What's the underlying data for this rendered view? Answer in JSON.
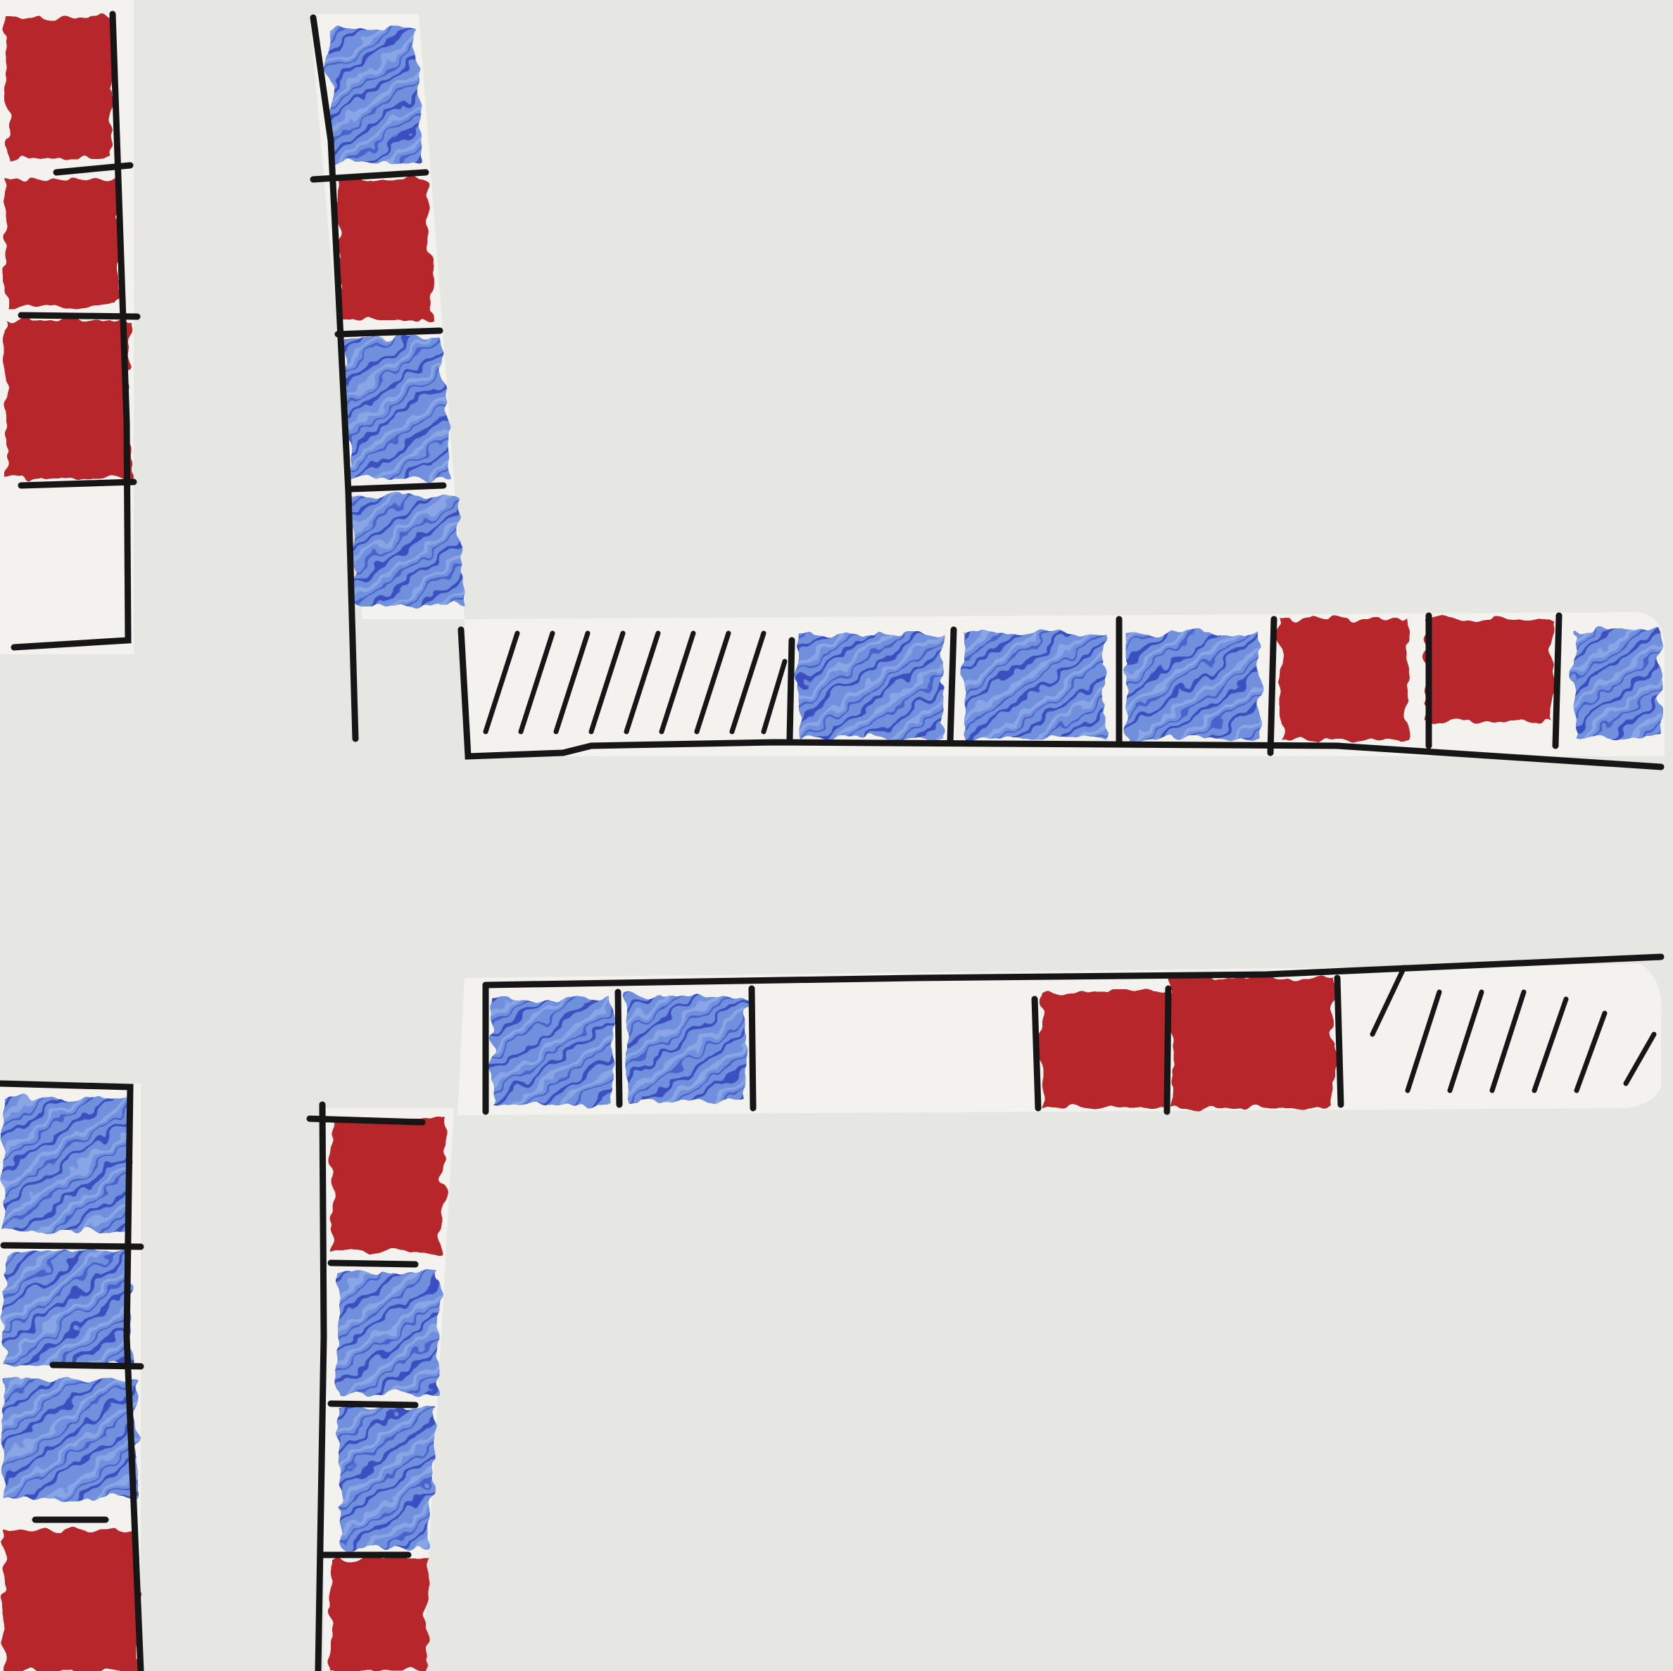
{
  "colors": {
    "paper": "#e6e6e3",
    "strip": "#f3f2ef",
    "ink": "#161616",
    "red": "#b6262c",
    "blue": "#5b7fd2",
    "blue_dark": "#3b4fc0"
  },
  "strips": [
    {
      "id": "top-left-outer",
      "cells": [
        "red",
        "red",
        "red",
        "empty"
      ]
    },
    {
      "id": "top-left-inner",
      "cells": [
        "blue",
        "red",
        "blue",
        "blue"
      ]
    },
    {
      "id": "top-horizontal",
      "cells": [
        "hatched",
        "blue",
        "blue",
        "blue",
        "red",
        "red",
        "blue"
      ]
    },
    {
      "id": "bottom-horizontal",
      "cells": [
        "blue",
        "blue",
        "empty",
        "red",
        "red",
        "hatched"
      ]
    },
    {
      "id": "bottom-left-outer",
      "cells": [
        "blue",
        "blue",
        "blue",
        "red"
      ]
    },
    {
      "id": "bottom-left-inner",
      "cells": [
        "red",
        "blue",
        "blue",
        "red"
      ]
    }
  ]
}
